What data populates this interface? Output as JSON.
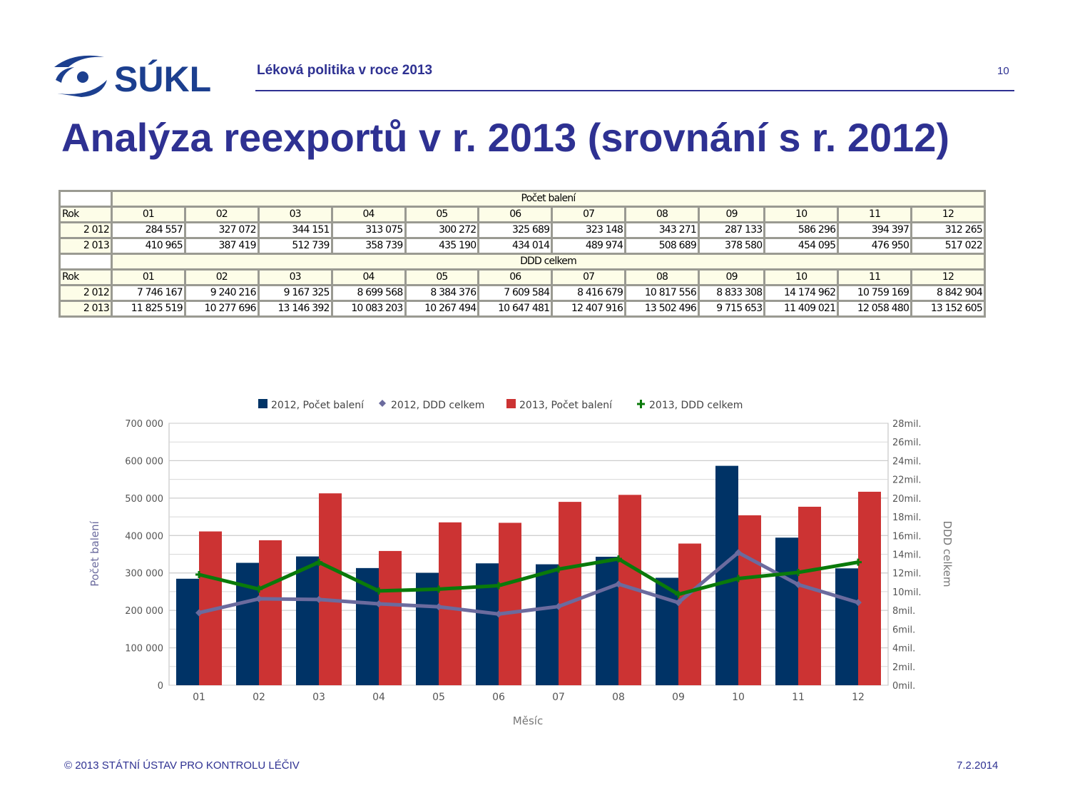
{
  "header": {
    "logo_text": "SÚKL",
    "subtitle": "Léková politika v roce 2013",
    "page_number": "10"
  },
  "title": "Analýza reexportů v r. 2013 (srovnání s r. 2012)",
  "tables": [
    {
      "group": "Počet balení",
      "row_header": "Rok",
      "months": [
        "01",
        "02",
        "03",
        "04",
        "05",
        "06",
        "07",
        "08",
        "09",
        "10",
        "11",
        "12"
      ],
      "rows": [
        {
          "year": "2 012",
          "values": [
            "284 557",
            "327 072",
            "344 151",
            "313 075",
            "300 272",
            "325 689",
            "323 148",
            "343 271",
            "287 133",
            "586 296",
            "394 397",
            "312 265"
          ]
        },
        {
          "year": "2 013",
          "values": [
            "410 965",
            "387 419",
            "512 739",
            "358 739",
            "435 190",
            "434 014",
            "489 974",
            "508 689",
            "378 580",
            "454 095",
            "476 950",
            "517 022"
          ]
        }
      ]
    },
    {
      "group": "DDD celkem",
      "row_header": "Rok",
      "months": [
        "01",
        "02",
        "03",
        "04",
        "05",
        "06",
        "07",
        "08",
        "09",
        "10",
        "11",
        "12"
      ],
      "rows": [
        {
          "year": "2 012",
          "values": [
            "7 746 167",
            "9 240 216",
            "9 167 325",
            "8 699 568",
            "8 384 376",
            "7 609 584",
            "8 416 679",
            "10 817 556",
            "8 833 308",
            "14 174 962",
            "10 759 169",
            "8 842 904"
          ]
        },
        {
          "year": "2 013",
          "values": [
            "11 825 519",
            "10 277 696",
            "13 146 392",
            "10 083 203",
            "10 267 494",
            "10 647 481",
            "12 407 916",
            "13 502 496",
            "9 715 653",
            "11 409 021",
            "12 058 480",
            "13 152 605"
          ]
        }
      ]
    }
  ],
  "chart_data": {
    "type": "bar",
    "categories": [
      "01",
      "02",
      "03",
      "04",
      "05",
      "06",
      "07",
      "08",
      "09",
      "10",
      "11",
      "12"
    ],
    "xlabel": "Měsíc",
    "ylabel": "Počet balení",
    "y2label": "DDD celkem",
    "ylim": [
      0,
      700000
    ],
    "y2lim": [
      0,
      28000000
    ],
    "yticks": [
      "0",
      "100 000",
      "200 000",
      "300 000",
      "400 000",
      "500 000",
      "600 000",
      "700 000"
    ],
    "y2ticks": [
      "0mil.",
      "2mil.",
      "4mil.",
      "6mil.",
      "8mil.",
      "10mil.",
      "12mil.",
      "14mil.",
      "16mil.",
      "18mil.",
      "20mil.",
      "22mil.",
      "24mil.",
      "26mil.",
      "28mil."
    ],
    "legend_position": "top",
    "series": [
      {
        "name": "2012, Počet balení",
        "kind": "bar",
        "axis": "left",
        "color": "#003366",
        "values": [
          284557,
          327072,
          344151,
          313075,
          300272,
          325689,
          323148,
          343271,
          287133,
          586296,
          394397,
          312265
        ]
      },
      {
        "name": "2012,  DDD celkem",
        "kind": "line",
        "axis": "right",
        "color": "#6b6b9e",
        "values": [
          7746167,
          9240216,
          9167325,
          8699568,
          8384376,
          7609584,
          8416679,
          10817556,
          8833308,
          14174962,
          10759169,
          8842904
        ]
      },
      {
        "name": "2013, Počet balení",
        "kind": "bar",
        "axis": "left",
        "color": "#cc3333",
        "values": [
          410965,
          387419,
          512739,
          358739,
          435190,
          434014,
          489974,
          508689,
          378580,
          454095,
          476950,
          517022
        ]
      },
      {
        "name": "2013,  DDD celkem",
        "kind": "line",
        "axis": "right",
        "color": "#0a7a0a",
        "values": [
          11825519,
          10277696,
          13146392,
          10083203,
          10267494,
          10647481,
          12407916,
          13502496,
          9715653,
          11409021,
          12058480,
          13152605
        ]
      }
    ]
  },
  "footer": {
    "copyright": "© 2013  STÁTNÍ ÚSTAV PRO KONTROLU LÉČIV",
    "date": "7.2.2014"
  }
}
